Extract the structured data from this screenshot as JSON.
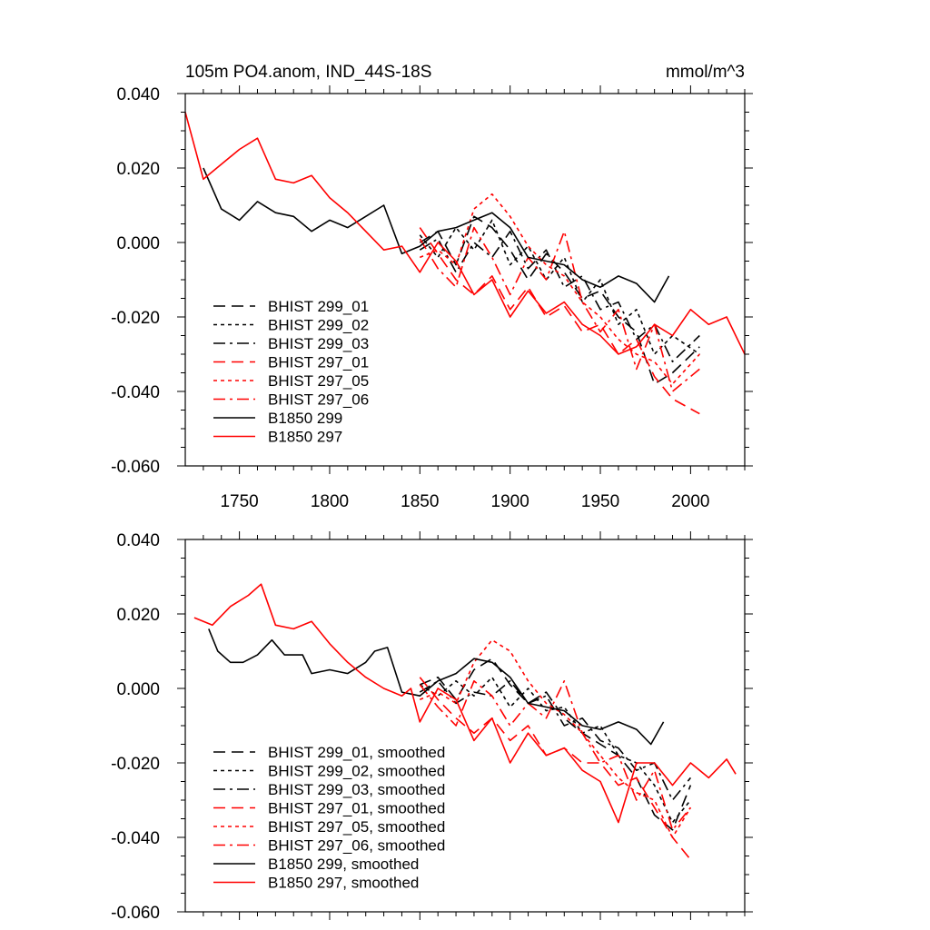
{
  "chart_data": [
    {
      "type": "line",
      "title": "105m PO4.anom, IND_44S-18S",
      "units": "mmol/m^3",
      "xlim": [
        1720,
        2030
      ],
      "ylim": [
        -0.06,
        0.04
      ],
      "xticks": [
        1750,
        1800,
        1850,
        1900,
        1950,
        2000
      ],
      "xtick_labels": [
        "1750",
        "1800",
        "1850",
        "1900",
        "1950",
        "2000"
      ],
      "yticks": [
        0.04,
        0.02,
        0.0,
        -0.02,
        -0.04,
        -0.06
      ],
      "ytick_labels": [
        "0.040",
        "0.020",
        "0.000",
        "-0.020",
        "-0.040",
        "-0.060"
      ],
      "legend_position": "bottom-left",
      "series": [
        {
          "name": "BHIST 299_01",
          "color": "#000000",
          "dash": "dashed",
          "x": [
            1850,
            1860,
            1870,
            1880,
            1890,
            1900,
            1910,
            1920,
            1930,
            1940,
            1950,
            1960,
            1970,
            1980,
            1990,
            2005
          ],
          "y": [
            0.0,
            0.003,
            -0.006,
            0.007,
            0.004,
            -0.002,
            -0.01,
            -0.003,
            -0.008,
            -0.015,
            -0.013,
            -0.02,
            -0.024,
            -0.038,
            -0.035,
            -0.028
          ]
        },
        {
          "name": "BHIST 299_02",
          "color": "#000000",
          "dash": "dotted",
          "x": [
            1850,
            1860,
            1870,
            1880,
            1890,
            1900,
            1910,
            1920,
            1930,
            1940,
            1950,
            1960,
            1970,
            1980,
            1990,
            2005
          ],
          "y": [
            0.002,
            -0.004,
            0.004,
            -0.002,
            0.006,
            -0.006,
            -0.001,
            -0.01,
            -0.004,
            -0.016,
            -0.01,
            -0.022,
            -0.018,
            -0.03,
            -0.025,
            -0.03
          ]
        },
        {
          "name": "BHIST 299_03",
          "color": "#000000",
          "dash": "dashdot",
          "x": [
            1850,
            1860,
            1870,
            1880,
            1890,
            1900,
            1910,
            1920,
            1930,
            1940,
            1950,
            1960,
            1970,
            1980,
            1990,
            2005
          ],
          "y": [
            -0.002,
            0.001,
            -0.008,
            0.0,
            -0.004,
            0.003,
            -0.007,
            -0.002,
            -0.012,
            -0.009,
            -0.018,
            -0.016,
            -0.026,
            -0.022,
            -0.032,
            -0.025
          ]
        },
        {
          "name": "BHIST 297_01",
          "color": "#ff0000",
          "dash": "dashed",
          "x": [
            1850,
            1860,
            1870,
            1880,
            1890,
            1900,
            1910,
            1920,
            1930,
            1940,
            1950,
            1960,
            1970,
            1980,
            1990,
            2005
          ],
          "y": [
            0.004,
            -0.003,
            -0.01,
            -0.014,
            -0.009,
            -0.018,
            -0.012,
            -0.02,
            -0.017,
            -0.024,
            -0.022,
            -0.03,
            -0.026,
            -0.036,
            -0.042,
            -0.046
          ]
        },
        {
          "name": "BHIST 297_05",
          "color": "#ff0000",
          "dash": "dotted",
          "x": [
            1850,
            1860,
            1870,
            1880,
            1890,
            1900,
            1910,
            1920,
            1930,
            1940,
            1950,
            1960,
            1970,
            1980,
            1990,
            2005
          ],
          "y": [
            -0.004,
            -0.002,
            -0.006,
            0.009,
            0.013,
            0.007,
            -0.001,
            -0.006,
            -0.009,
            -0.016,
            -0.02,
            -0.026,
            -0.03,
            -0.032,
            -0.038,
            -0.03
          ]
        },
        {
          "name": "BHIST 297_06",
          "color": "#ff0000",
          "dash": "dashdot",
          "x": [
            1850,
            1860,
            1870,
            1880,
            1890,
            1900,
            1910,
            1920,
            1930,
            1940,
            1950,
            1960,
            1970,
            1980,
            1990,
            2005
          ],
          "y": [
            0.001,
            -0.007,
            -0.012,
            0.004,
            -0.004,
            -0.014,
            -0.004,
            -0.01,
            0.003,
            -0.016,
            -0.024,
            -0.018,
            -0.034,
            -0.022,
            -0.04,
            -0.034
          ]
        },
        {
          "name": "B1850 299",
          "color": "#000000",
          "dash": "solid",
          "x": [
            1730,
            1740,
            1750,
            1760,
            1770,
            1780,
            1790,
            1800,
            1810,
            1820,
            1830,
            1840,
            1850,
            1860,
            1870,
            1880,
            1890,
            1900,
            1910,
            1920,
            1930,
            1940,
            1950,
            1960,
            1970,
            1980,
            1988
          ],
          "y": [
            0.02,
            0.009,
            0.006,
            0.011,
            0.008,
            0.007,
            0.003,
            0.006,
            0.004,
            0.007,
            0.01,
            -0.003,
            -0.001,
            0.003,
            0.004,
            0.006,
            0.008,
            0.004,
            -0.004,
            -0.005,
            -0.006,
            -0.01,
            -0.012,
            -0.009,
            -0.011,
            -0.016,
            -0.009
          ]
        },
        {
          "name": "B1850 297",
          "color": "#ff0000",
          "dash": "solid",
          "x": [
            1720,
            1730,
            1740,
            1750,
            1760,
            1770,
            1780,
            1790,
            1800,
            1810,
            1820,
            1830,
            1840,
            1850,
            1860,
            1870,
            1880,
            1890,
            1900,
            1910,
            1920,
            1930,
            1940,
            1950,
            1960,
            1970,
            1980,
            1990,
            2000,
            2010,
            2020,
            2030
          ],
          "y": [
            0.035,
            0.017,
            0.021,
            0.025,
            0.028,
            0.017,
            0.016,
            0.018,
            0.012,
            0.008,
            0.003,
            -0.002,
            -0.001,
            -0.008,
            0.0,
            -0.005,
            -0.014,
            -0.01,
            -0.02,
            -0.013,
            -0.019,
            -0.016,
            -0.022,
            -0.025,
            -0.03,
            -0.028,
            -0.022,
            -0.025,
            -0.018,
            -0.022,
            -0.02,
            -0.03
          ]
        }
      ]
    },
    {
      "type": "line",
      "title": "",
      "xlim": [
        1720,
        2030
      ],
      "ylim": [
        -0.06,
        0.04
      ],
      "yticks": [
        0.04,
        0.02,
        0.0,
        -0.02,
        -0.04,
        -0.06
      ],
      "ytick_labels": [
        "0.040",
        "0.020",
        "0.000",
        "-0.020",
        "-0.040",
        "-0.060"
      ],
      "legend_position": "bottom-left",
      "series": [
        {
          "name": "BHIST 299_01, smoothed",
          "color": "#000000",
          "dash": "dashed",
          "x": [
            1850,
            1860,
            1870,
            1880,
            1890,
            1900,
            1910,
            1920,
            1930,
            1940,
            1950,
            1960,
            1970,
            1980,
            1990,
            2000
          ],
          "y": [
            0.001,
            0.003,
            -0.003,
            0.005,
            0.008,
            0.001,
            -0.004,
            -0.001,
            -0.008,
            -0.012,
            -0.015,
            -0.018,
            -0.024,
            -0.034,
            -0.038,
            -0.026
          ]
        },
        {
          "name": "BHIST 299_02, smoothed",
          "color": "#000000",
          "dash": "dotted",
          "x": [
            1850,
            1860,
            1870,
            1880,
            1890,
            1900,
            1910,
            1920,
            1930,
            1940,
            1950,
            1960,
            1970,
            1980,
            1990,
            2000
          ],
          "y": [
            0.001,
            -0.002,
            0.002,
            -0.002,
            0.003,
            -0.005,
            0.0,
            -0.006,
            -0.005,
            -0.012,
            -0.01,
            -0.018,
            -0.02,
            -0.026,
            -0.036,
            -0.03
          ]
        },
        {
          "name": "BHIST 299_03, smoothed",
          "color": "#000000",
          "dash": "dashdot",
          "x": [
            1850,
            1860,
            1870,
            1880,
            1890,
            1900,
            1910,
            1920,
            1930,
            1940,
            1950,
            1960,
            1970,
            1980,
            1990,
            2000
          ],
          "y": [
            -0.001,
            0.002,
            -0.004,
            -0.001,
            -0.002,
            0.002,
            -0.004,
            -0.002,
            -0.01,
            -0.008,
            -0.014,
            -0.016,
            -0.022,
            -0.02,
            -0.03,
            -0.024
          ]
        },
        {
          "name": "BHIST 297_01, smoothed",
          "color": "#ff0000",
          "dash": "dashed",
          "x": [
            1850,
            1860,
            1870,
            1880,
            1890,
            1900,
            1910,
            1920,
            1930,
            1940,
            1950,
            1960,
            1970,
            1980,
            1990,
            2000
          ],
          "y": [
            0.003,
            -0.003,
            -0.008,
            -0.012,
            -0.008,
            -0.014,
            -0.01,
            -0.018,
            -0.016,
            -0.02,
            -0.02,
            -0.026,
            -0.024,
            -0.032,
            -0.04,
            -0.046
          ]
        },
        {
          "name": "BHIST 297_05, smoothed",
          "color": "#ff0000",
          "dash": "dotted",
          "x": [
            1850,
            1860,
            1870,
            1880,
            1890,
            1900,
            1910,
            1920,
            1930,
            1940,
            1950,
            1960,
            1970,
            1980,
            1990,
            2000
          ],
          "y": [
            -0.003,
            -0.001,
            -0.004,
            0.007,
            0.013,
            0.01,
            0.002,
            -0.004,
            -0.007,
            -0.012,
            -0.018,
            -0.024,
            -0.028,
            -0.03,
            -0.04,
            -0.032
          ]
        },
        {
          "name": "BHIST 297_06, smoothed",
          "color": "#ff0000",
          "dash": "dashdot",
          "x": [
            1850,
            1860,
            1870,
            1880,
            1890,
            1900,
            1910,
            1920,
            1930,
            1940,
            1950,
            1960,
            1970,
            1980,
            1990,
            2000
          ],
          "y": [
            0.001,
            -0.005,
            -0.01,
            0.002,
            -0.002,
            -0.01,
            -0.004,
            -0.008,
            0.002,
            -0.012,
            -0.02,
            -0.018,
            -0.03,
            -0.022,
            -0.038,
            -0.032
          ]
        },
        {
          "name": "B1850 299, smoothed",
          "color": "#000000",
          "dash": "solid",
          "x": [
            1733,
            1738,
            1745,
            1752,
            1760,
            1768,
            1775,
            1785,
            1790,
            1800,
            1810,
            1820,
            1825,
            1832,
            1840,
            1850,
            1860,
            1870,
            1880,
            1890,
            1900,
            1910,
            1920,
            1930,
            1940,
            1950,
            1960,
            1970,
            1978,
            1985
          ],
          "y": [
            0.016,
            0.01,
            0.007,
            0.007,
            0.009,
            0.013,
            0.009,
            0.009,
            0.004,
            0.005,
            0.004,
            0.007,
            0.01,
            0.011,
            -0.001,
            -0.002,
            0.002,
            0.004,
            0.008,
            0.007,
            0.003,
            -0.004,
            -0.005,
            -0.006,
            -0.01,
            -0.011,
            -0.009,
            -0.011,
            -0.015,
            -0.009
          ]
        },
        {
          "name": "B1850 297, smoothed",
          "color": "#ff0000",
          "dash": "solid",
          "x": [
            1725,
            1735,
            1745,
            1755,
            1762,
            1770,
            1780,
            1790,
            1800,
            1810,
            1820,
            1830,
            1840,
            1845,
            1850,
            1860,
            1870,
            1880,
            1890,
            1900,
            1910,
            1920,
            1930,
            1940,
            1950,
            1960,
            1970,
            1980,
            1990,
            2000,
            2010,
            2020,
            2025
          ],
          "y": [
            0.019,
            0.017,
            0.022,
            0.025,
            0.028,
            0.017,
            0.016,
            0.018,
            0.012,
            0.007,
            0.003,
            0.0,
            -0.002,
            0.0,
            -0.009,
            0.0,
            -0.003,
            -0.014,
            -0.008,
            -0.02,
            -0.012,
            -0.018,
            -0.016,
            -0.022,
            -0.025,
            -0.036,
            -0.02,
            -0.02,
            -0.026,
            -0.02,
            -0.024,
            -0.019,
            -0.023
          ]
        }
      ]
    }
  ]
}
